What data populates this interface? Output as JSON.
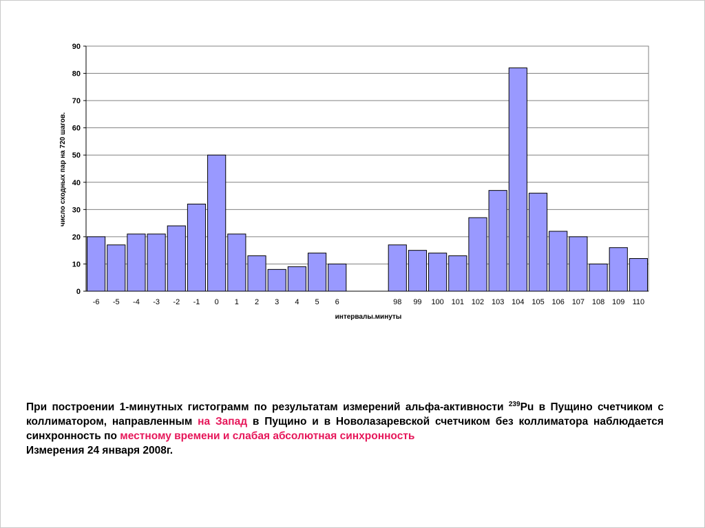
{
  "chart_data": {
    "type": "bar",
    "xlabel": "интервалы.минуты",
    "ylabel": "число сходных пар на 720 шагов.",
    "ylim": [
      0,
      90
    ],
    "yticks": [
      0,
      10,
      20,
      30,
      40,
      50,
      60,
      70,
      80,
      90
    ],
    "grid": true,
    "bar_color": "#9999ff",
    "groups": [
      {
        "categories": [
          "-6",
          "-5",
          "-4",
          "-3",
          "-2",
          "-1",
          "0",
          "1",
          "2",
          "3",
          "4",
          "5",
          "6"
        ],
        "values": [
          20,
          17,
          21,
          21,
          24,
          32,
          50,
          21,
          13,
          8,
          9,
          14,
          10
        ]
      },
      {
        "categories": [
          "98",
          "99",
          "100",
          "101",
          "102",
          "103",
          "104",
          "105",
          "106",
          "107",
          "108",
          "109",
          "110"
        ],
        "values": [
          17,
          15,
          14,
          13,
          27,
          37,
          82,
          36,
          22,
          20,
          10,
          16,
          12
        ]
      }
    ]
  },
  "caption": {
    "p1": "При построении 1-минутных гистограмм по результатам измерений альфа-активности ",
    "sup": "239",
    "p2": "Pu в Пущино счетчиком  с коллиматором, направленным ",
    "hl1": "на Запад",
    "p3": " в Пущино и в Новолазаревской счетчиком без коллиматора наблюдается синхронность по ",
    "hl2": "местному времени и слабая  абсолютная синхронность",
    "p4": "Измерения 24 января 2008г."
  },
  "colors": {
    "highlight": "#e6175a",
    "bars": "#9999ff",
    "frame": "#b3b3b3"
  }
}
